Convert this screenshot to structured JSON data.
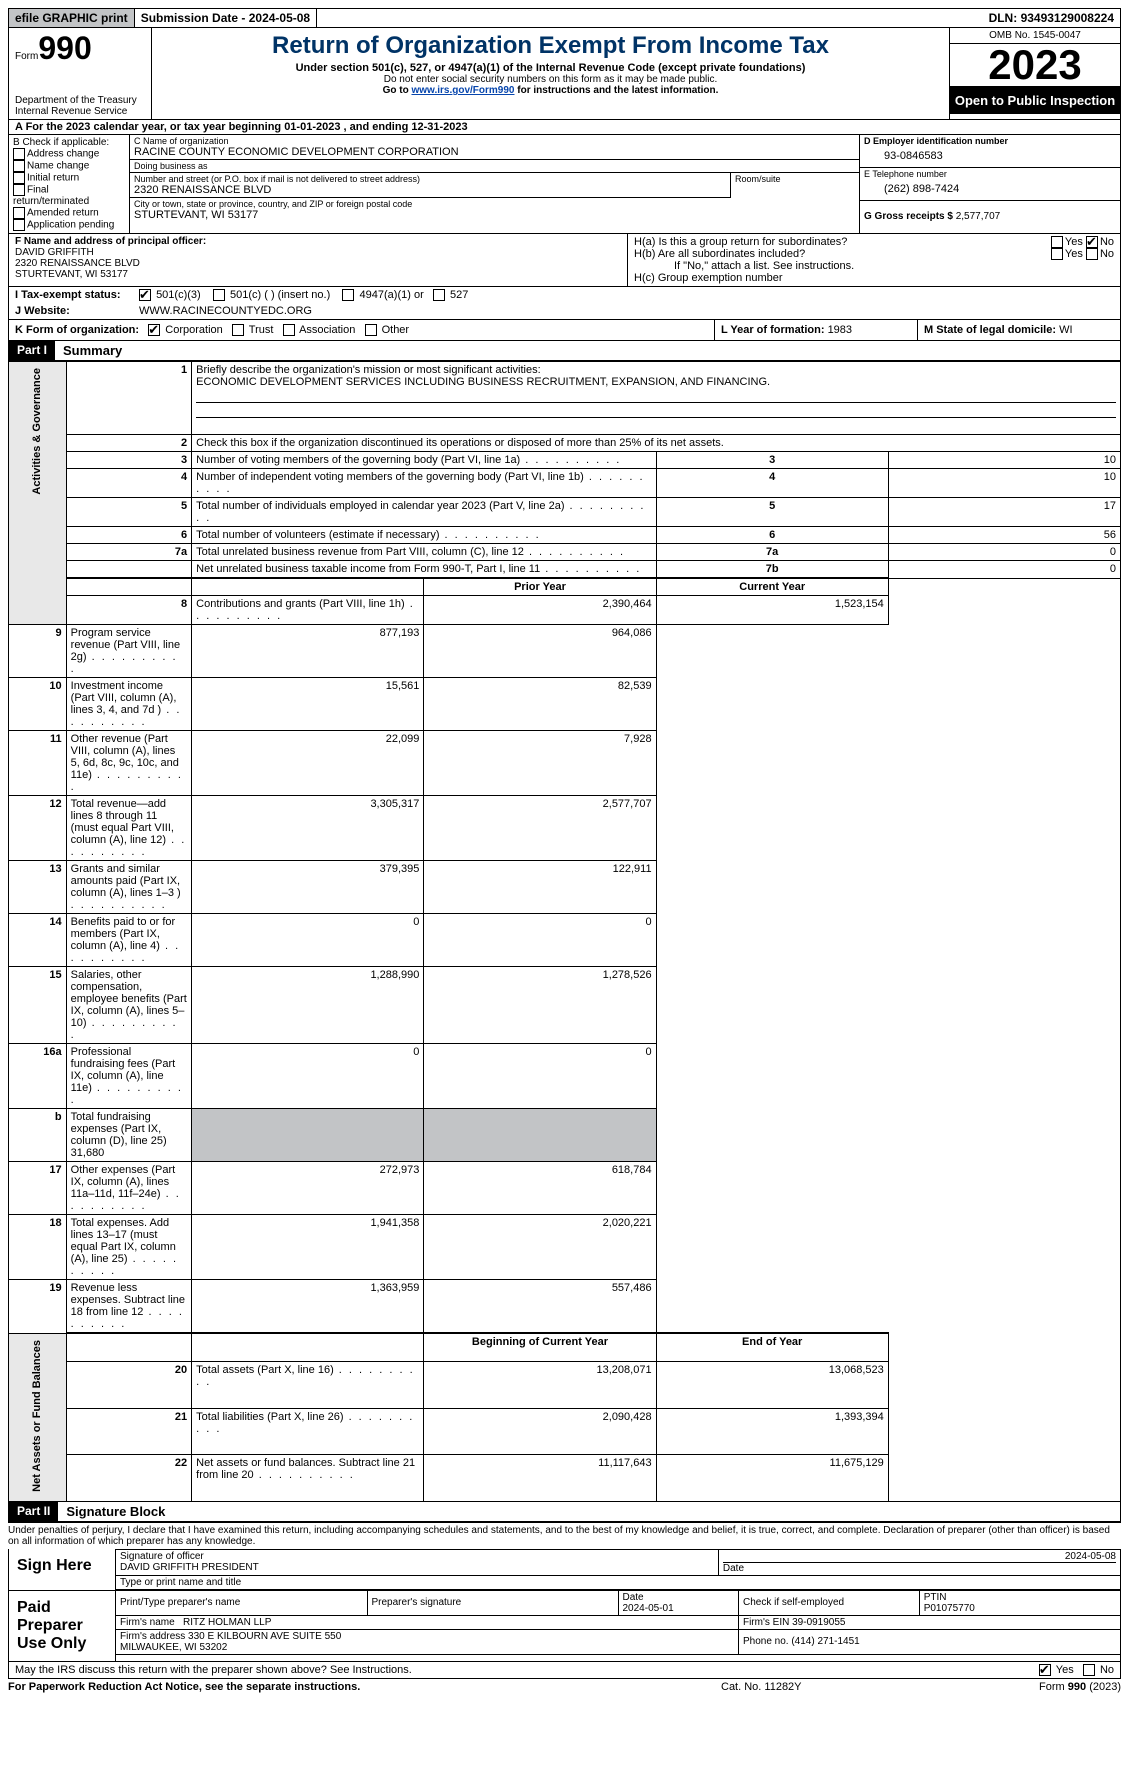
{
  "topbar": {
    "efile": "efile GRAPHIC print",
    "submission_label": "Submission Date - ",
    "submission_date": "2024-05-08",
    "dln_label": "DLN: ",
    "dln": "93493129008224"
  },
  "header": {
    "form_label": "Form",
    "form_no": "990",
    "dept": "Department of the Treasury\nInternal Revenue Service",
    "title": "Return of Organization Exempt From Income Tax",
    "sub": "Under section 501(c), 527, or 4947(a)(1) of the Internal Revenue Code (except private foundations)",
    "ssn": "Do not enter social security numbers on this form as it may be made public.",
    "goto_pre": "Go to ",
    "goto_link": "www.irs.gov/Form990",
    "goto_post": " for instructions and the latest information.",
    "omb": "OMB No. 1545-0047",
    "year": "2023",
    "open": "Open to Public Inspection"
  },
  "lineA": "A For the 2023 calendar year, or tax year beginning 01-01-2023   , and ending 12-31-2023",
  "boxB": {
    "title": "B Check if applicable:",
    "items": [
      "Address change",
      "Name change",
      "Initial return",
      "Final return/terminated",
      "Amended return",
      "Application pending"
    ]
  },
  "boxC": {
    "name_lbl": "C Name of organization",
    "name": "RACINE COUNTY ECONOMIC DEVELOPMENT CORPORATION",
    "dba_lbl": "Doing business as",
    "dba": "",
    "street_lbl": "Number and street (or P.O. box if mail is not delivered to street address)",
    "street": "2320 RENAISSANCE BLVD",
    "room_lbl": "Room/suite",
    "room": "",
    "city_lbl": "City or town, state or province, country, and ZIP or foreign postal code",
    "city": "STURTEVANT, WI  53177"
  },
  "boxD": {
    "lbl": "D Employer identification number",
    "val": "93-0846583"
  },
  "boxE": {
    "lbl": "E Telephone number",
    "val": "(262) 898-7424"
  },
  "boxG": {
    "lbl": "G Gross receipts $ ",
    "val": "2,577,707"
  },
  "boxF": {
    "lbl": "F  Name and address of principal officer:",
    "name": "DAVID GRIFFITH",
    "street": "2320 RENAISSANCE BLVD",
    "city": "STURTEVANT, WI  53177"
  },
  "boxH": {
    "a": "H(a)  Is this a group return for subordinates?",
    "b": "H(b)  Are all subordinates included?",
    "b_note": "If \"No,\" attach a list. See instructions.",
    "c": "H(c)  Group exemption number  ",
    "yes": "Yes",
    "no": "No"
  },
  "rowI": {
    "lbl": "I   Tax-exempt status:",
    "o1": "501(c)(3)",
    "o2": "501(c) (  ) (insert no.)",
    "o3": "4947(a)(1) or",
    "o4": "527"
  },
  "rowJ": {
    "lbl": "J   Website:  ",
    "val": "WWW.RACINECOUNTYEDC.ORG"
  },
  "rowK": {
    "lbl": "K Form of organization:",
    "opts": [
      "Corporation",
      "Trust",
      "Association",
      "Other"
    ]
  },
  "rowL": {
    "lbl": "L Year of formation: ",
    "val": "1983"
  },
  "rowM": {
    "lbl": "M State of legal domicile: ",
    "val": "WI"
  },
  "part1": {
    "tag": "Part I",
    "title": "Summary",
    "l1": "Briefly describe the organization's mission or most significant activities:",
    "mission": "ECONOMIC DEVELOPMENT SERVICES INCLUDING BUSINESS RECRUITMENT, EXPANSION, AND FINANCING.",
    "l2": "Check this box          if the organization discontinued its operations or disposed of more than 25% of its net assets.",
    "side_ag": "Activities & Governance",
    "side_rev": "Revenue",
    "side_exp": "Expenses",
    "side_na": "Net Assets or Fund Balances",
    "col_prior": "Prior Year",
    "col_curr": "Current Year",
    "col_boy": "Beginning of Current Year",
    "col_eoy": "End of Year",
    "rows_gov": [
      {
        "n": "3",
        "d": "Number of voting members of the governing body (Part VI, line 1a)",
        "box": "3",
        "v": "10"
      },
      {
        "n": "4",
        "d": "Number of independent voting members of the governing body (Part VI, line 1b)",
        "box": "4",
        "v": "10"
      },
      {
        "n": "5",
        "d": "Total number of individuals employed in calendar year 2023 (Part V, line 2a)",
        "box": "5",
        "v": "17"
      },
      {
        "n": "6",
        "d": "Total number of volunteers (estimate if necessary)",
        "box": "6",
        "v": "56"
      },
      {
        "n": "7a",
        "d": "Total unrelated business revenue from Part VIII, column (C), line 12",
        "box": "7a",
        "v": "0"
      },
      {
        "n": "",
        "d": "Net unrelated business taxable income from Form 990-T, Part I, line 11",
        "box": "7b",
        "v": "0"
      }
    ],
    "rows_rev": [
      {
        "n": "8",
        "d": "Contributions and grants (Part VIII, line 1h)",
        "p": "2,390,464",
        "c": "1,523,154"
      },
      {
        "n": "9",
        "d": "Program service revenue (Part VIII, line 2g)",
        "p": "877,193",
        "c": "964,086"
      },
      {
        "n": "10",
        "d": "Investment income (Part VIII, column (A), lines 3, 4, and 7d )",
        "p": "15,561",
        "c": "82,539"
      },
      {
        "n": "11",
        "d": "Other revenue (Part VIII, column (A), lines 5, 6d, 8c, 9c, 10c, and 11e)",
        "p": "22,099",
        "c": "7,928"
      },
      {
        "n": "12",
        "d": "Total revenue—add lines 8 through 11 (must equal Part VIII, column (A), line 12)",
        "p": "3,305,317",
        "c": "2,577,707"
      }
    ],
    "rows_exp": [
      {
        "n": "13",
        "d": "Grants and similar amounts paid (Part IX, column (A), lines 1–3 )",
        "p": "379,395",
        "c": "122,911"
      },
      {
        "n": "14",
        "d": "Benefits paid to or for members (Part IX, column (A), line 4)",
        "p": "0",
        "c": "0"
      },
      {
        "n": "15",
        "d": "Salaries, other compensation, employee benefits (Part IX, column (A), lines 5–10)",
        "p": "1,288,990",
        "c": "1,278,526"
      },
      {
        "n": "16a",
        "d": "Professional fundraising fees (Part IX, column (A), line 11e)",
        "p": "0",
        "c": "0"
      },
      {
        "n": "b",
        "d": "Total fundraising expenses (Part IX, column (D), line 25) 31,680",
        "p": "",
        "c": "",
        "shade": true
      },
      {
        "n": "17",
        "d": "Other expenses (Part IX, column (A), lines 11a–11d, 11f–24e)",
        "p": "272,973",
        "c": "618,784"
      },
      {
        "n": "18",
        "d": "Total expenses. Add lines 13–17 (must equal Part IX, column (A), line 25)",
        "p": "1,941,358",
        "c": "2,020,221"
      },
      {
        "n": "19",
        "d": "Revenue less expenses. Subtract line 18 from line 12",
        "p": "1,363,959",
        "c": "557,486"
      }
    ],
    "rows_na": [
      {
        "n": "20",
        "d": "Total assets (Part X, line 16)",
        "p": "13,208,071",
        "c": "13,068,523"
      },
      {
        "n": "21",
        "d": "Total liabilities (Part X, line 26)",
        "p": "2,090,428",
        "c": "1,393,394"
      },
      {
        "n": "22",
        "d": "Net assets or fund balances. Subtract line 21 from line 20",
        "p": "11,117,643",
        "c": "11,675,129"
      }
    ]
  },
  "part2": {
    "tag": "Part II",
    "title": "Signature Block",
    "penalties": "Under penalties of perjury, I declare that I have examined this return, including accompanying schedules and statements, and to the best of my knowledge and belief, it is true, correct, and complete. Declaration of preparer (other than officer) is based on all information of which preparer has any knowledge.",
    "sign_here": "Sign Here",
    "sig_officer_lbl": "Signature of officer",
    "sig_officer": "DAVID GRIFFITH PRESIDENT",
    "sig_date_lbl": "Date",
    "sig_date": "2024-05-08",
    "type_lbl": "Type or print name and title",
    "paid": "Paid Preparer Use Only",
    "prep_name_lbl": "Print/Type preparer's name",
    "prep_name": "",
    "prep_sig_lbl": "Preparer's signature",
    "prep_date_lbl": "Date",
    "prep_date": "2024-05-01",
    "self_emp": "Check        if self-employed",
    "ptin_lbl": "PTIN",
    "ptin": "P01075770",
    "firm_name_lbl": "Firm's name   ",
    "firm_name": "RITZ HOLMAN LLP",
    "firm_ein_lbl": "Firm's EIN  ",
    "firm_ein": "39-0919055",
    "firm_addr_lbl": "Firm's address ",
    "firm_addr": "330 E KILBOURN AVE SUITE 550\nMILWAUKEE, WI  53202",
    "phone_lbl": "Phone no. ",
    "phone": "(414) 271-1451",
    "may_irs": "May the IRS discuss this return with the preparer shown above? See Instructions.",
    "yes": "Yes",
    "no": "No"
  },
  "footer": {
    "left": "For Paperwork Reduction Act Notice, see the separate instructions.",
    "mid": "Cat. No. 11282Y",
    "right_pre": "Form ",
    "right_form": "990",
    "right_post": " (2023)"
  }
}
